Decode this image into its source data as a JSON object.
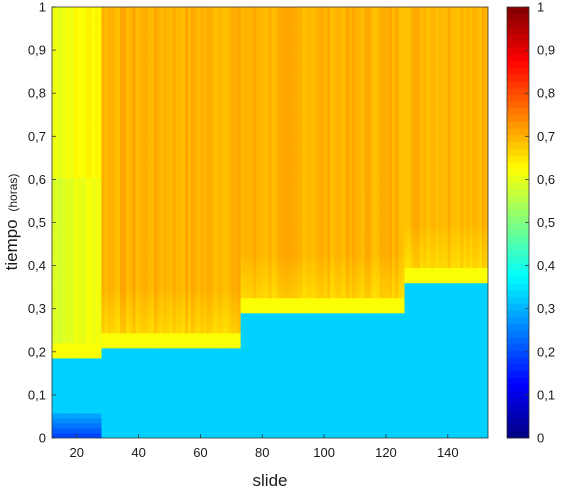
{
  "chart_data": {
    "type": "heatmap",
    "title": "",
    "xlabel": "slide",
    "ylabel_main": "tiempo",
    "ylabel_unit": "(horas)",
    "xlim": [
      12,
      153
    ],
    "ylim": [
      0,
      1
    ],
    "xticks": [
      20,
      40,
      60,
      80,
      100,
      120,
      140
    ],
    "yticks": [
      0,
      0.1,
      0.2,
      0.3,
      0.4,
      0.5,
      0.6,
      0.7,
      0.8,
      0.9,
      1
    ],
    "ytick_labels": [
      "0",
      "0,1",
      "0,2",
      "0,3",
      "0,4",
      "0,5",
      "0,6",
      "0,7",
      "0,8",
      "0,9",
      "1"
    ],
    "colorbar": {
      "colormap": "jet",
      "range": [
        0,
        1
      ],
      "ticks": [
        0,
        0.1,
        0.2,
        0.3,
        0.4,
        0.5,
        0.6,
        0.7,
        0.8,
        0.9,
        1
      ],
      "tick_labels": [
        "0",
        "0,1",
        "0,2",
        "0,3",
        "0,4",
        "0,5",
        "0,6",
        "0,7",
        "0,8",
        "0,9",
        "1"
      ]
    },
    "regions": [
      {
        "x": [
          12,
          28
        ],
        "y_boundary": 0.2,
        "lower_value": 0.33,
        "upper_value": 0.64
      },
      {
        "x": [
          28,
          73
        ],
        "y_boundary": 0.22,
        "lower_value": 0.33,
        "upper_value": 0.7
      },
      {
        "x": [
          73,
          126
        ],
        "y_boundary": 0.3,
        "lower_value": 0.33,
        "upper_value": 0.7
      },
      {
        "x": [
          126,
          153
        ],
        "y_boundary": 0.37,
        "lower_value": 0.33,
        "upper_value": 0.7
      }
    ]
  }
}
